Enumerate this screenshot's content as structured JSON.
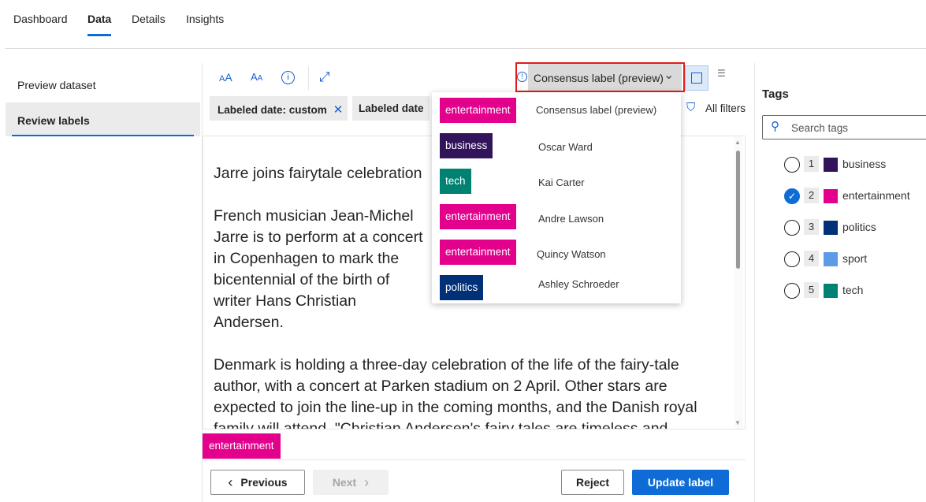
{
  "top_tabs": [
    {
      "label": "Dashboard"
    },
    {
      "label": "Data",
      "active": true
    },
    {
      "label": "Details"
    },
    {
      "label": "Insights"
    }
  ],
  "left_nav": [
    {
      "label": "Preview dataset"
    },
    {
      "label": "Review labels",
      "active": true
    }
  ],
  "toolbar": {
    "icons": [
      "increase-font-icon",
      "decrease-font-icon",
      "info-icon",
      "expand-icon"
    ],
    "view_select": "Consensus label (preview)",
    "filters_label": "All filters"
  },
  "filters": [
    {
      "label": "Labeled date: custom"
    },
    {
      "label": "Labeled date"
    }
  ],
  "document": {
    "title": "Jarre joins fairytale celebration",
    "para1": "French musician Jean-Michel Jarre is to perform at a concert in Copenhagen to mark the bicentennial of the birth of writer Hans Christian Andersen.",
    "para2": "Denmark is holding a three-day celebration of the life of the fairy-tale author, with a concert at Parken stadium on 2 April. Other stars are expected to join the line-up in the coming months, and the Danish royal family will attend. \"Christian Andersen's fairy tales are timeless and universal,\" said Jarre. \"For all of us, at any age there is always - beyond the pure enjoyment of the tale - a message to learn.\" There are year-long celebrations planned across the world to celebrate Andersen and his"
  },
  "current_label": {
    "name": "entertainment",
    "color": "#e3008c"
  },
  "dropdown_menu": [
    {
      "tag": "entertainment",
      "color": "#e3008c",
      "name": "Consensus label (preview)"
    },
    {
      "tag": "business",
      "color": "#32145a",
      "name": "Oscar Ward"
    },
    {
      "tag": "tech",
      "color": "#008272",
      "name": "Kai Carter"
    },
    {
      "tag": "entertainment",
      "color": "#e3008c",
      "name": "Andre Lawson"
    },
    {
      "tag": "entertainment",
      "color": "#e3008c",
      "name": "Quincy Watson"
    },
    {
      "tag": "politics",
      "color": "#003078",
      "name": "Ashley Schroeder"
    }
  ],
  "footer": {
    "previous": "Previous",
    "next": "Next",
    "reject": "Reject",
    "update": "Update label"
  },
  "tags_panel": {
    "title": "Tags",
    "search_placeholder": "Search tags",
    "tags": [
      {
        "num": "1",
        "name": "business",
        "color": "#32145a",
        "selected": false
      },
      {
        "num": "2",
        "name": "entertainment",
        "color": "#e3008c",
        "selected": true
      },
      {
        "num": "3",
        "name": "politics",
        "color": "#003078",
        "selected": false
      },
      {
        "num": "4",
        "name": "sport",
        "color": "#5c9ce6",
        "selected": false
      },
      {
        "num": "5",
        "name": "tech",
        "color": "#008272",
        "selected": false
      }
    ]
  },
  "accent": "#0f6cd6"
}
